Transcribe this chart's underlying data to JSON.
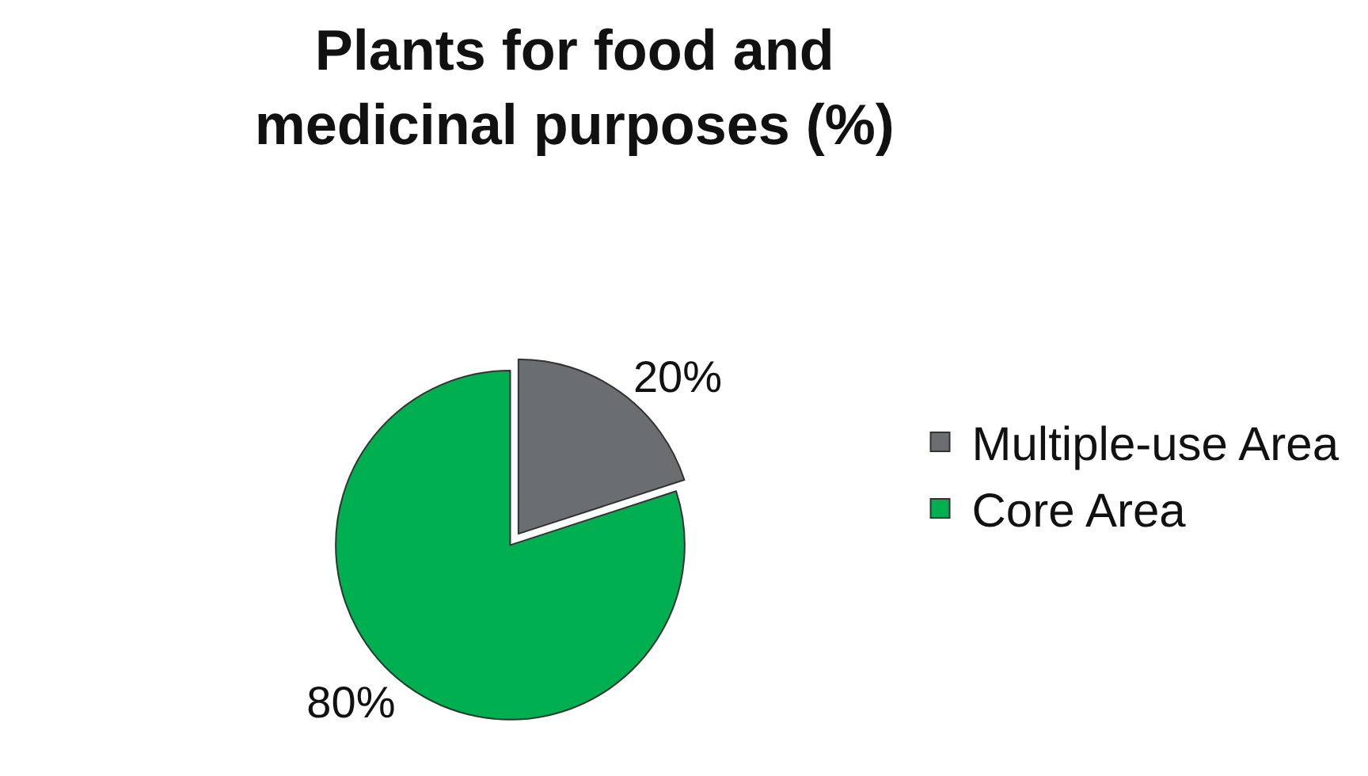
{
  "chart_data": {
    "type": "pie",
    "title": "Plants for food and medicinal purposes (%)",
    "categories": [
      "Multiple-use Area",
      "Core Area"
    ],
    "values": [
      20,
      80
    ],
    "colors": [
      "#6b6e71",
      "#00b050"
    ],
    "value_labels": [
      "20%",
      "80%"
    ],
    "legend": "right"
  }
}
